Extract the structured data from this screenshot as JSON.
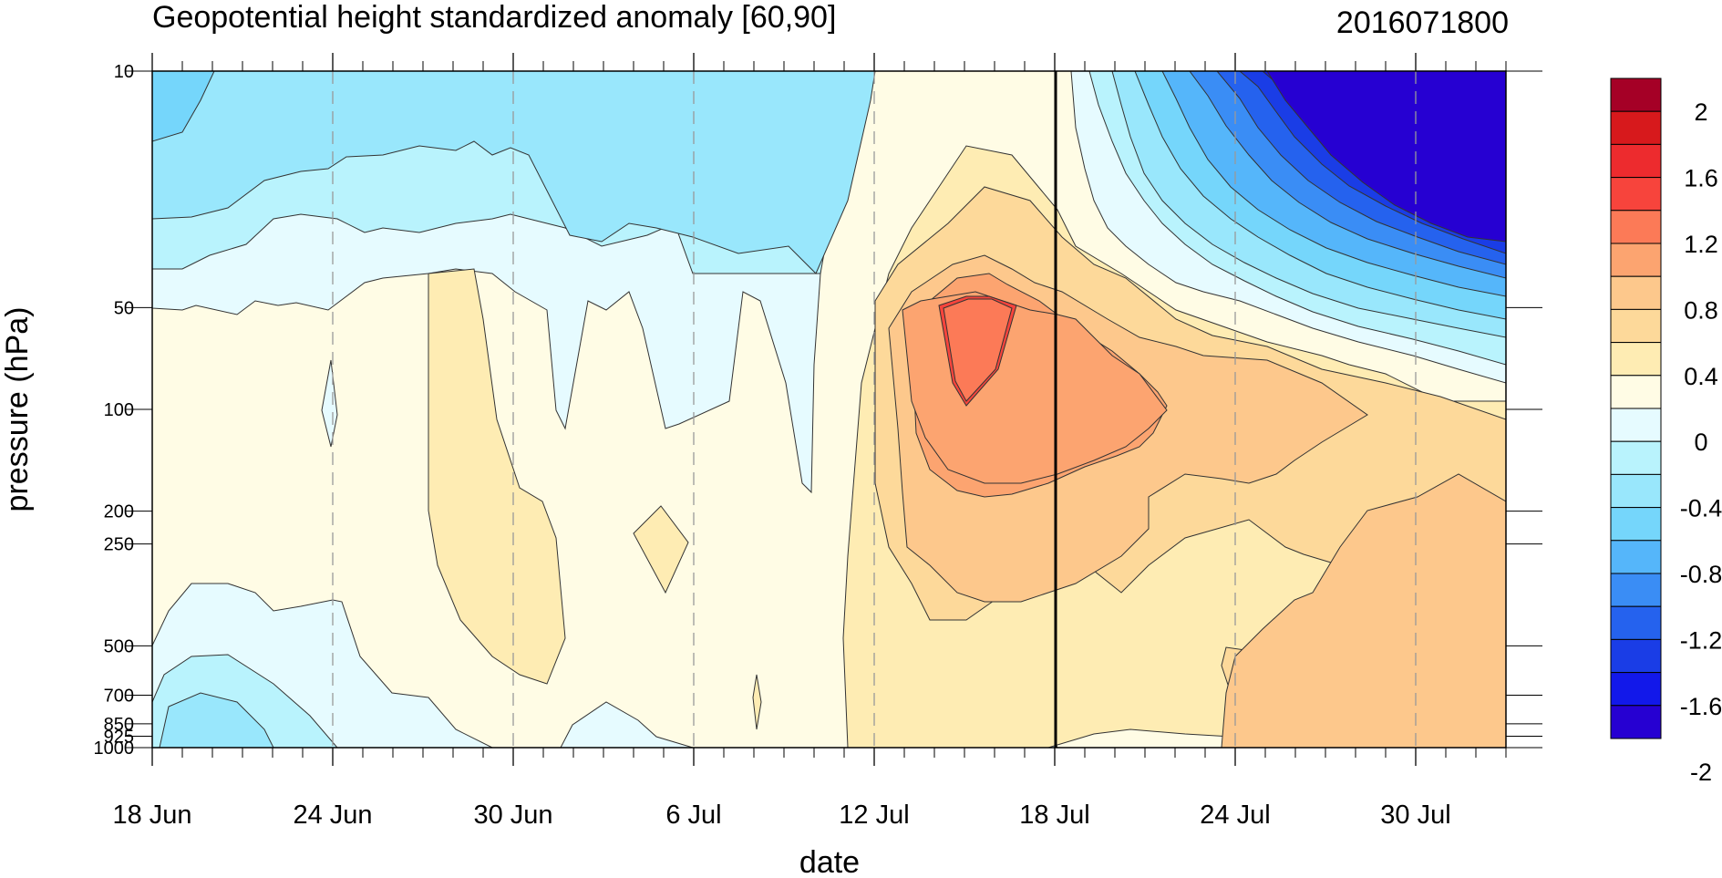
{
  "chart_data": {
    "type": "heatmap",
    "subtype": "filled-contour",
    "title": "Geopotential height standardized anomaly [60,90]",
    "timestamp": "2016071800",
    "xlabel": "date",
    "ylabel": "pressure (hPa)",
    "x_tick_labels": [
      "18 Jun",
      "24 Jun",
      "30 Jun",
      "6 Jul",
      "12 Jul",
      "18 Jul",
      "24 Jul",
      "30 Jul"
    ],
    "y_tick_labels": [
      "10",
      "50",
      "100",
      "200",
      "250",
      "500",
      "700",
      "850",
      "925",
      "1000"
    ],
    "y_scale": "log",
    "y_range_hPa": [
      1000,
      10
    ],
    "x_range": [
      "18 Jun",
      "2 Aug"
    ],
    "reference_line": "18 Jul",
    "grid": "dashed vertical lines at date ticks",
    "colorbar": {
      "position": "right",
      "labels": [
        "2",
        "1.6",
        "1.2",
        "0.8",
        "0.4",
        "0",
        "-0.4",
        "-0.8",
        "-1.2",
        "-1.6",
        "-2"
      ],
      "colors": [
        "#a50026",
        "#d7191c",
        "#ed2b2e",
        "#f7443c",
        "#fc7a57",
        "#fca470",
        "#fdc88c",
        "#fdd99a",
        "#feecb3",
        "#fffce5",
        "#e6fbff",
        "#b9f3fd",
        "#99e7fc",
        "#75d6fb",
        "#55b6fa",
        "#3a8df5",
        "#2562ee",
        "#1a3de6",
        "#1218ea",
        "#2600d2"
      ]
    },
    "features": [
      {
        "description": "positive anomaly maximum",
        "date": "15 Jul",
        "pressure_hPa": 70,
        "value": 1.2
      },
      {
        "description": "strong negative anomaly",
        "date": "30 Jul",
        "pressure_hPa": 15,
        "value": -2.0
      },
      {
        "description": "negative anomaly upper levels",
        "date": "24 Jun",
        "pressure_hPa": 20,
        "value": -0.6
      },
      {
        "description": "positive anomaly lower stratosphere",
        "date": "20 Jul",
        "pressure_hPa": 80,
        "value": 0.9
      }
    ]
  }
}
